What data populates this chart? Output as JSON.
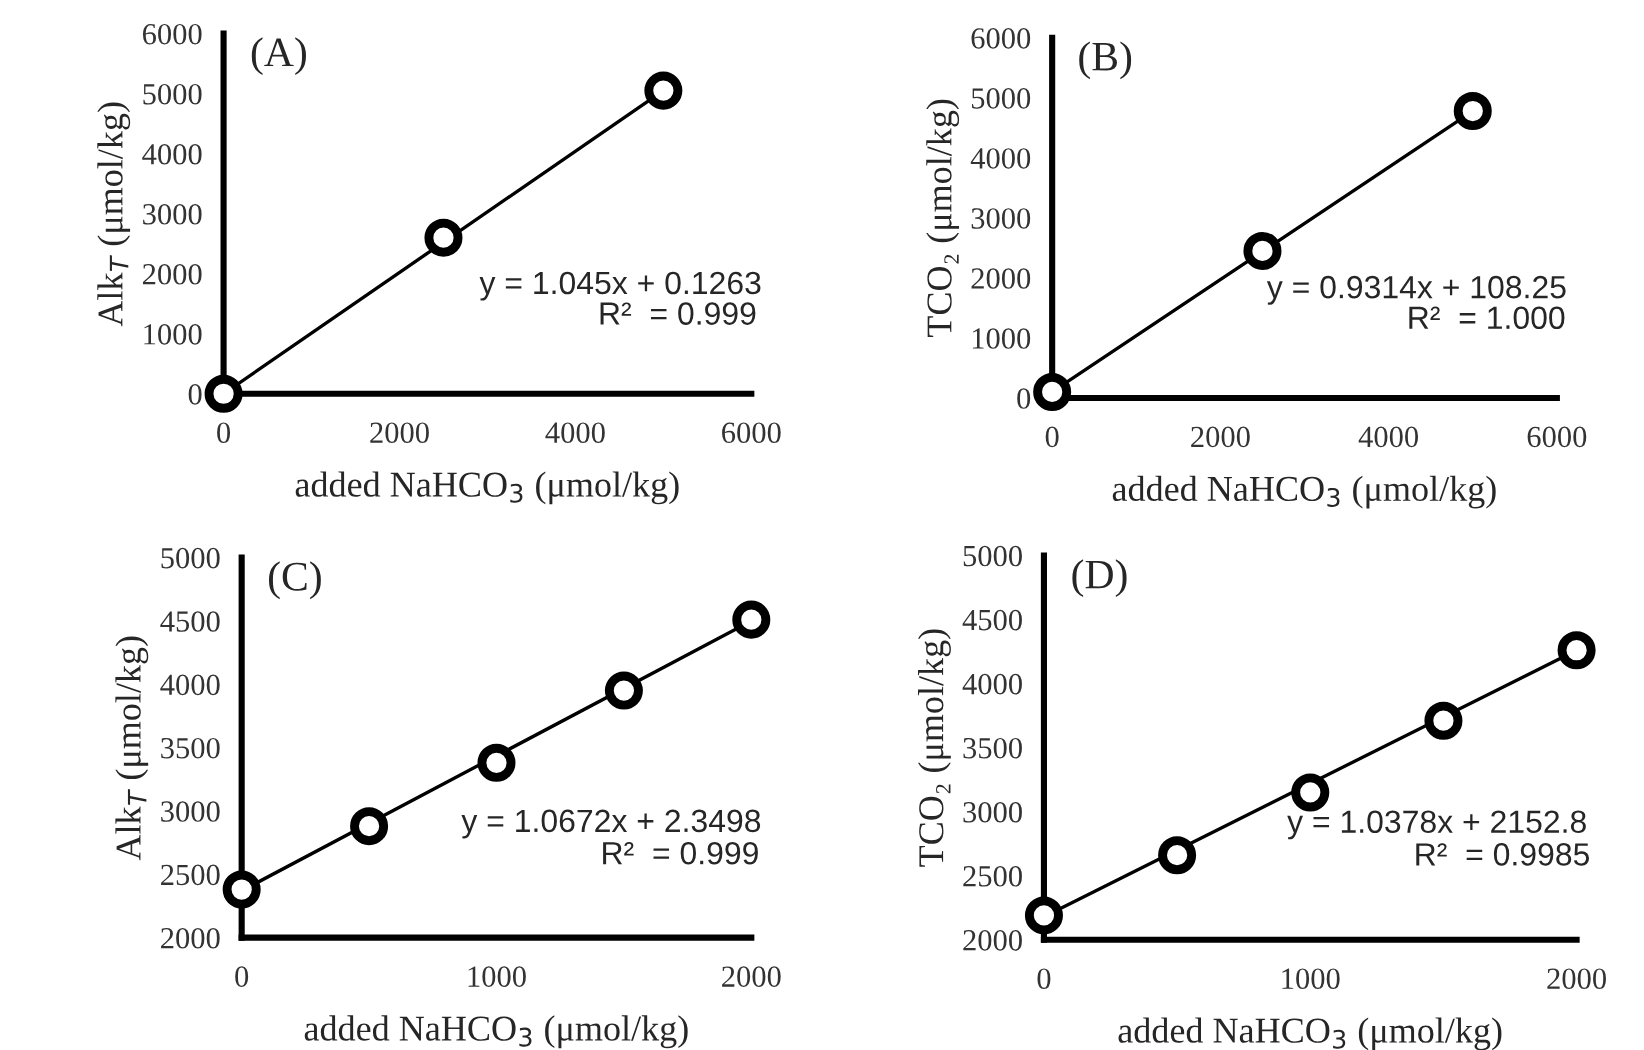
{
  "chart_data": [
    {
      "type": "scatter",
      "title": "(A)",
      "xlabel": "added NaHCO$_{3}$ (μmol/kg)",
      "ylabel": "Alk$_{T}$ (μmol/kg)",
      "xlim": [
        0,
        6000
      ],
      "xticks": [
        0,
        2000,
        4000,
        6000
      ],
      "ylim": [
        0,
        6000
      ],
      "yticks": [
        0,
        1000,
        2000,
        3000,
        4000,
        5000,
        6000
      ],
      "grid": false,
      "series": [
        {
          "type": "scatter",
          "marker": "circle",
          "color": "#000000",
          "x": [
            0,
            2500,
            5000
          ],
          "values": [
            0,
            2600,
            5050
          ]
        },
        {
          "type": "line",
          "color": "#000000",
          "x": [
            0,
            5000
          ],
          "values": [
            0,
            5050
          ]
        }
      ],
      "annotations": [
        "y = 1.045x + 0.1263",
        "R²  = 0.999"
      ]
    },
    {
      "type": "scatter",
      "title": "(B)",
      "xlabel": "added NaHCO$_{3}$ (μmol/kg)",
      "ylabel": "TCO₂ (μmol/kg)",
      "xlim": [
        0,
        6000
      ],
      "xticks": [
        0,
        2000,
        4000,
        6000
      ],
      "ylim": [
        0,
        6000
      ],
      "yticks": [
        0,
        1000,
        2000,
        3000,
        4000,
        5000,
        6000
      ],
      "grid": false,
      "series": [
        {
          "type": "scatter",
          "marker": "circle",
          "color": "#000000",
          "x": [
            0,
            2500,
            5000
          ],
          "values": [
            100,
            2450,
            4780
          ]
        },
        {
          "type": "line",
          "color": "#000000",
          "x": [
            0,
            5000
          ],
          "values": [
            100,
            4780
          ]
        }
      ],
      "annotations": [
        "y = 0.9314x + 108.25",
        "R²  = 1.000"
      ]
    },
    {
      "type": "scatter",
      "title": "(C)",
      "xlabel": "added NaHCO$_{3}$ (μmol/kg)",
      "ylabel": "Alk$_{T}$ (μmol/kg)",
      "xlim": [
        0,
        2000
      ],
      "xticks": [
        0,
        1000,
        2000
      ],
      "ylim": [
        2000,
        5000
      ],
      "yticks": [
        2000,
        2500,
        3000,
        3500,
        4000,
        4500,
        5000
      ],
      "grid": false,
      "series": [
        {
          "type": "scatter",
          "marker": "circle",
          "color": "#000000",
          "x": [
            0,
            500,
            1000,
            1500,
            2000
          ],
          "values": [
            2380,
            2880,
            3380,
            3950,
            4510
          ]
        },
        {
          "type": "line",
          "color": "#000000",
          "x": [
            0,
            2000
          ],
          "values": [
            2370,
            4500
          ]
        }
      ],
      "annotations": [
        "y = 1.0672x + 2.3498",
        "R²  = 0.999"
      ]
    },
    {
      "type": "scatter",
      "title": "(D)",
      "xlabel": "added NaHCO$_{3}$ (μmol/kg)",
      "ylabel": "TCO₂ (μmol/kg)",
      "xlim": [
        0,
        2000
      ],
      "xticks": [
        0,
        1000,
        2000
      ],
      "ylim": [
        2000,
        5000
      ],
      "yticks": [
        2000,
        2500,
        3000,
        3500,
        4000,
        4500,
        5000
      ],
      "grid": false,
      "series": [
        {
          "type": "scatter",
          "marker": "circle",
          "color": "#000000",
          "x": [
            0,
            500,
            1000,
            1500,
            2000
          ],
          "values": [
            2190,
            2660,
            3150,
            3710,
            4260
          ]
        },
        {
          "type": "line",
          "color": "#000000",
          "x": [
            0,
            2000
          ],
          "values": [
            2180,
            4260
          ]
        }
      ],
      "annotations": [
        "y = 1.0378x + 2152.8",
        "R²  = 0.9985"
      ]
    }
  ]
}
